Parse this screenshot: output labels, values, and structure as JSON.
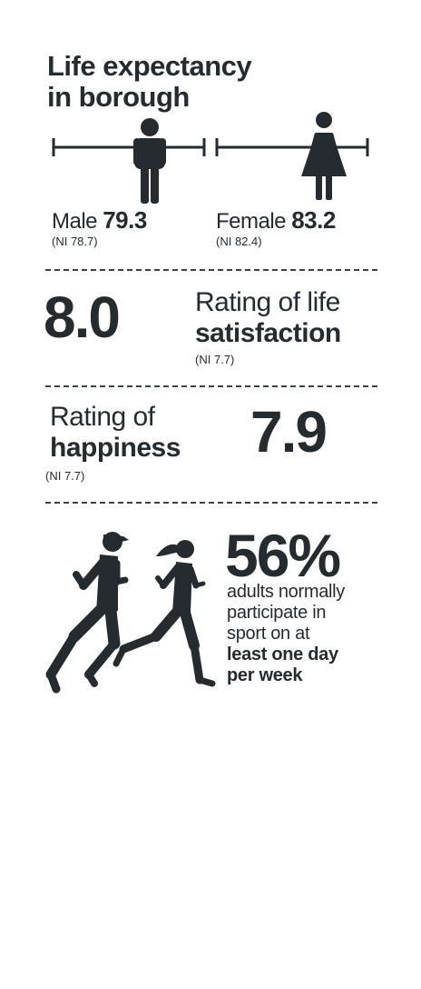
{
  "title_line1": "Life expectancy",
  "title_line2": "in borough",
  "male": {
    "label": "Male",
    "value": "79.3",
    "ni": "(NI 78.7)"
  },
  "female": {
    "label": "Female",
    "value": "83.2",
    "ni": "(NI 82.4)"
  },
  "life_satisfaction": {
    "value": "8.0",
    "line1": "Rating of life",
    "line2": "satisfaction",
    "ni": "(NI 7.7)"
  },
  "happiness": {
    "value": "7.9",
    "line1": "Rating of",
    "line2": "happiness",
    "ni": "(NI 7.7)"
  },
  "sport": {
    "percent": "56%",
    "line1": "adults normally",
    "line2": "participate in",
    "line3": "sport on at",
    "line4": "least one day",
    "line5": "per week"
  },
  "icons": [
    "male-figure-icon",
    "female-figure-icon",
    "male-runner-icon",
    "female-runner-icon"
  ],
  "colors": {
    "text": "#262b30",
    "background": "#ffffff"
  }
}
